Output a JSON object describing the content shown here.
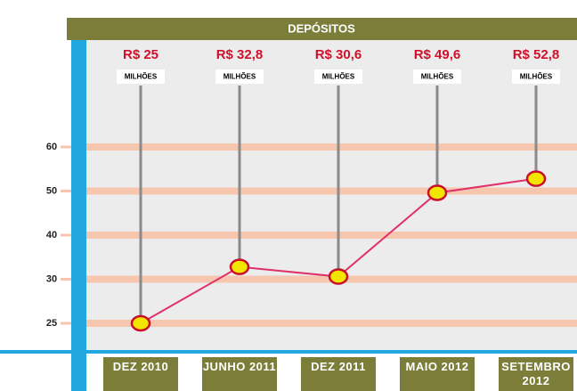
{
  "chart_data": {
    "type": "line",
    "title": "DEPÓSITOS",
    "categories": [
      "DEZ 2010",
      "JUNHO 2011",
      "DEZ 2011",
      "MAIO 2012",
      "SETEMBRO 2012"
    ],
    "series": [
      {
        "name": "Depósitos",
        "color": "#e0306a",
        "marker_color": "#f2e600",
        "values": [
          25,
          32.8,
          30.6,
          49.6,
          52.8
        ],
        "value_labels": [
          "R$ 25",
          "R$ 32,8",
          "R$ 30,6",
          "R$ 49,6",
          "R$ 52,8"
        ]
      }
    ],
    "value_unit": "MILHÕES",
    "yticks": [
      25,
      30,
      40,
      50,
      60
    ],
    "grid": true
  }
}
